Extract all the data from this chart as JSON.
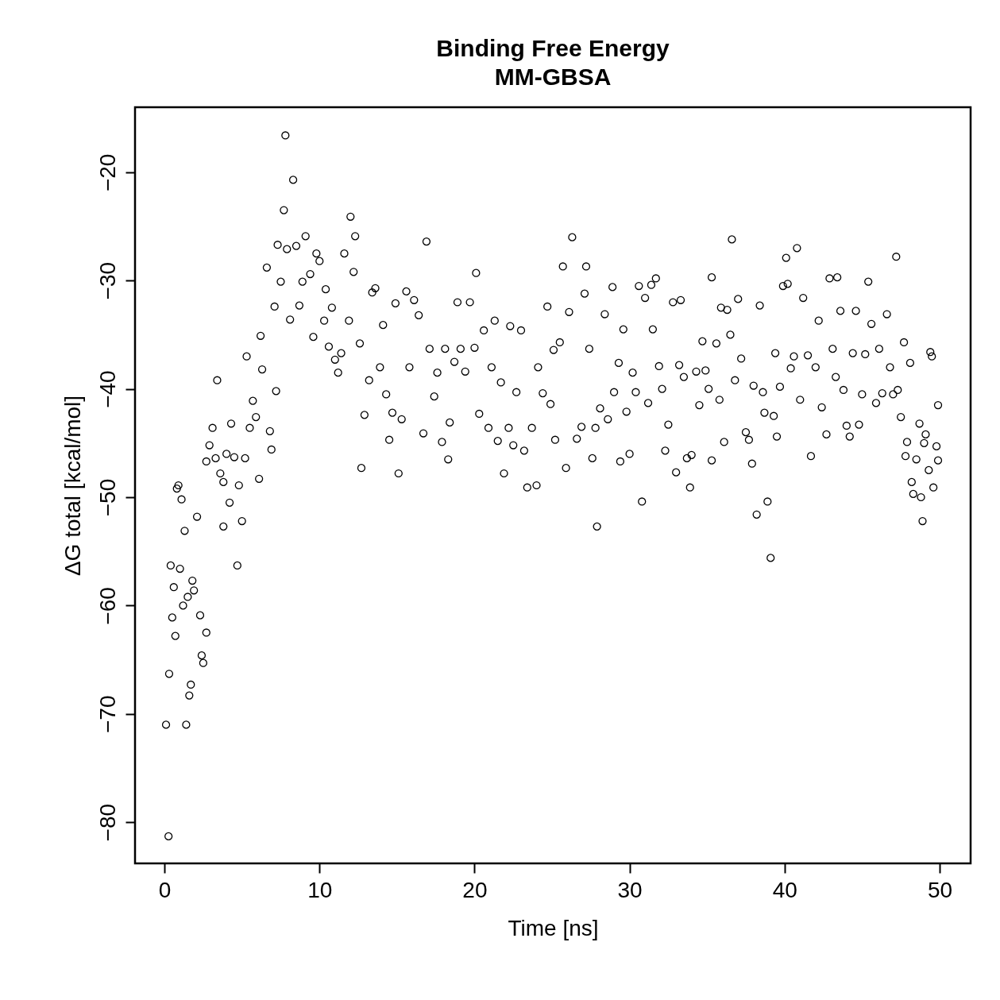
{
  "chart_data": {
    "type": "scatter",
    "title": "Binding Free Energy",
    "subtitle": "MM-GBSA",
    "xlabel": "Time [ns]",
    "ylabel": "ΔG total [kcal/mol]",
    "xlim": [
      -1.9,
      52
    ],
    "ylim": [
      -83.8,
      -14
    ],
    "xticks": [
      0,
      10,
      20,
      30,
      40,
      50
    ],
    "yticks": [
      -80,
      -70,
      -60,
      -50,
      -40,
      -30,
      -20
    ],
    "grid": false,
    "legend": false,
    "marker": "circle",
    "series": [
      {
        "color": "#000000",
        "x": [
          0.1,
          0.26,
          0.3,
          0.4,
          0.5,
          0.6,
          0.7,
          0.8,
          0.9,
          1.0,
          1.1,
          1.2,
          1.3,
          1.4,
          1.5,
          1.6,
          1.7,
          1.8,
          1.9,
          2.1,
          2.3,
          2.4,
          2.5,
          2.7,
          2.7,
          2.9,
          3.1,
          3.3,
          3.4,
          3.6,
          3.8,
          3.8,
          4.0,
          4.2,
          4.3,
          4.5,
          4.7,
          4.8,
          5.0,
          5.2,
          5.3,
          5.5,
          5.7,
          5.9,
          6.1,
          6.2,
          6.3,
          6.6,
          6.8,
          6.9,
          7.1,
          7.2,
          7.3,
          7.5,
          7.7,
          7.8,
          7.9,
          8.1,
          8.3,
          8.5,
          8.7,
          8.9,
          9.1,
          9.4,
          9.6,
          9.8,
          10.0,
          10.3,
          10.4,
          10.6,
          10.8,
          11.0,
          11.2,
          11.4,
          11.6,
          11.9,
          12.0,
          12.2,
          12.3,
          12.6,
          12.7,
          12.9,
          13.2,
          13.4,
          13.6,
          13.9,
          14.1,
          14.3,
          14.5,
          14.7,
          14.9,
          15.1,
          15.3,
          15.6,
          15.8,
          16.1,
          16.4,
          16.7,
          16.9,
          17.1,
          17.4,
          17.6,
          17.9,
          18.1,
          18.3,
          18.4,
          18.7,
          18.9,
          19.1,
          19.4,
          19.7,
          20.0,
          20.1,
          20.3,
          20.6,
          20.9,
          21.1,
          21.3,
          21.5,
          21.7,
          21.9,
          22.2,
          22.3,
          22.5,
          22.7,
          23.0,
          23.2,
          23.4,
          23.7,
          24.0,
          24.1,
          24.4,
          24.7,
          24.9,
          25.1,
          25.2,
          25.5,
          25.7,
          25.9,
          26.1,
          26.3,
          26.6,
          26.9,
          27.1,
          27.2,
          27.4,
          27.6,
          27.8,
          27.9,
          28.1,
          28.4,
          28.6,
          28.9,
          29.0,
          29.3,
          29.4,
          29.6,
          29.8,
          30.0,
          30.2,
          30.4,
          30.6,
          30.8,
          31.0,
          31.2,
          31.4,
          31.5,
          31.7,
          31.9,
          32.1,
          32.3,
          32.5,
          32.8,
          33.0,
          33.2,
          33.3,
          33.5,
          33.7,
          33.9,
          34.0,
          34.3,
          34.5,
          34.7,
          34.9,
          35.1,
          35.3,
          35.3,
          35.6,
          35.8,
          35.9,
          36.1,
          36.3,
          36.5,
          36.6,
          36.8,
          37.0,
          37.2,
          37.5,
          37.7,
          37.9,
          38.0,
          38.2,
          38.4,
          38.6,
          38.7,
          38.9,
          39.1,
          39.3,
          39.4,
          39.5,
          39.7,
          39.9,
          40.1,
          40.2,
          40.4,
          40.6,
          40.8,
          41.0,
          41.2,
          41.5,
          41.7,
          42.0,
          42.2,
          42.4,
          42.7,
          42.9,
          43.1,
          43.3,
          43.4,
          43.6,
          43.8,
          44.0,
          44.2,
          44.4,
          44.6,
          44.8,
          45.0,
          45.2,
          45.4,
          45.6,
          45.9,
          46.1,
          46.3,
          46.6,
          46.8,
          47.0,
          47.2,
          47.3,
          47.5,
          47.7,
          47.8,
          47.9,
          48.1,
          48.2,
          48.3,
          48.5,
          48.7,
          48.8,
          48.9,
          49.0,
          49.1,
          49.3,
          49.4,
          49.5,
          49.6,
          49.8,
          49.9,
          49.9
        ],
        "values": [
          -71.0,
          -81.3,
          -66.3,
          -56.3,
          -61.1,
          -58.3,
          -62.8,
          -49.2,
          -48.9,
          -56.6,
          -50.2,
          -60.0,
          -53.1,
          -71.0,
          -59.2,
          -68.3,
          -67.3,
          -57.7,
          -58.6,
          -51.8,
          -60.9,
          -64.6,
          -65.3,
          -62.5,
          -46.7,
          -45.2,
          -43.6,
          -46.4,
          -39.2,
          -47.8,
          -48.6,
          -52.7,
          -46.0,
          -50.5,
          -43.2,
          -46.3,
          -56.3,
          -48.9,
          -52.2,
          -46.4,
          -37.0,
          -43.6,
          -41.1,
          -42.6,
          -48.3,
          -35.1,
          -38.2,
          -28.8,
          -43.9,
          -45.6,
          -32.4,
          -40.2,
          -26.7,
          -30.1,
          -23.5,
          -16.6,
          -27.1,
          -33.6,
          -20.7,
          -26.8,
          -32.3,
          -30.1,
          -25.9,
          -29.4,
          -35.2,
          -27.5,
          -28.2,
          -33.7,
          -30.8,
          -36.1,
          -32.5,
          -37.3,
          -38.5,
          -36.7,
          -27.5,
          -33.7,
          -24.1,
          -29.2,
          -25.9,
          -35.8,
          -47.3,
          -42.4,
          -39.2,
          -31.1,
          -30.7,
          -38.0,
          -34.1,
          -40.5,
          -44.7,
          -42.2,
          -32.1,
          -47.8,
          -42.8,
          -31.0,
          -38.0,
          -31.8,
          -33.2,
          -44.1,
          -26.4,
          -36.3,
          -40.7,
          -38.5,
          -44.9,
          -36.3,
          -46.5,
          -43.1,
          -37.5,
          -32.0,
          -36.3,
          -38.4,
          -32.0,
          -36.2,
          -29.3,
          -42.3,
          -34.6,
          -43.6,
          -38.0,
          -33.7,
          -44.8,
          -39.4,
          -47.8,
          -43.6,
          -34.2,
          -45.2,
          -40.3,
          -34.6,
          -45.7,
          -49.1,
          -43.6,
          -48.9,
          -38.0,
          -40.4,
          -32.4,
          -41.4,
          -36.4,
          -44.7,
          -35.7,
          -28.7,
          -47.3,
          -32.9,
          -26.0,
          -44.6,
          -43.5,
          -31.2,
          -28.7,
          -36.3,
          -46.4,
          -43.6,
          -52.7,
          -41.8,
          -33.1,
          -42.8,
          -30.6,
          -40.3,
          -37.6,
          -46.7,
          -34.5,
          -42.1,
          -46.0,
          -38.5,
          -40.3,
          -30.5,
          -50.4,
          -31.6,
          -41.3,
          -30.4,
          -34.5,
          -29.8,
          -37.9,
          -40.0,
          -45.7,
          -43.3,
          -32.0,
          -47.7,
          -37.8,
          -31.8,
          -38.9,
          -46.4,
          -49.1,
          -46.1,
          -38.4,
          -41.5,
          -35.6,
          -38.3,
          -40.0,
          -46.6,
          -29.7,
          -35.8,
          -41.0,
          -32.5,
          -44.9,
          -32.7,
          -35.0,
          -26.2,
          -39.2,
          -31.7,
          -37.2,
          -44.0,
          -44.7,
          -46.9,
          -39.7,
          -51.6,
          -32.3,
          -40.3,
          -42.2,
          -50.4,
          -55.6,
          -42.5,
          -36.7,
          -44.4,
          -39.8,
          -30.5,
          -27.9,
          -30.3,
          -38.1,
          -37.0,
          -27.0,
          -41.0,
          -31.6,
          -36.9,
          -46.2,
          -38.0,
          -33.7,
          -41.7,
          -44.2,
          -29.8,
          -36.3,
          -38.9,
          -29.7,
          -32.8,
          -40.1,
          -43.4,
          -44.4,
          -36.7,
          -32.8,
          -43.3,
          -40.5,
          -36.8,
          -30.1,
          -34.0,
          -41.3,
          -36.3,
          -40.4,
          -33.1,
          -38.0,
          -40.5,
          -27.8,
          -40.1,
          -42.6,
          -35.7,
          -46.2,
          -44.9,
          -37.6,
          -48.6,
          -49.7,
          -46.5,
          -43.2,
          -50.0,
          -52.2,
          -45.0,
          -44.2,
          -47.5,
          -36.6,
          -37.0,
          -49.1,
          -45.3,
          -46.6,
          -41.5
        ]
      }
    ]
  }
}
